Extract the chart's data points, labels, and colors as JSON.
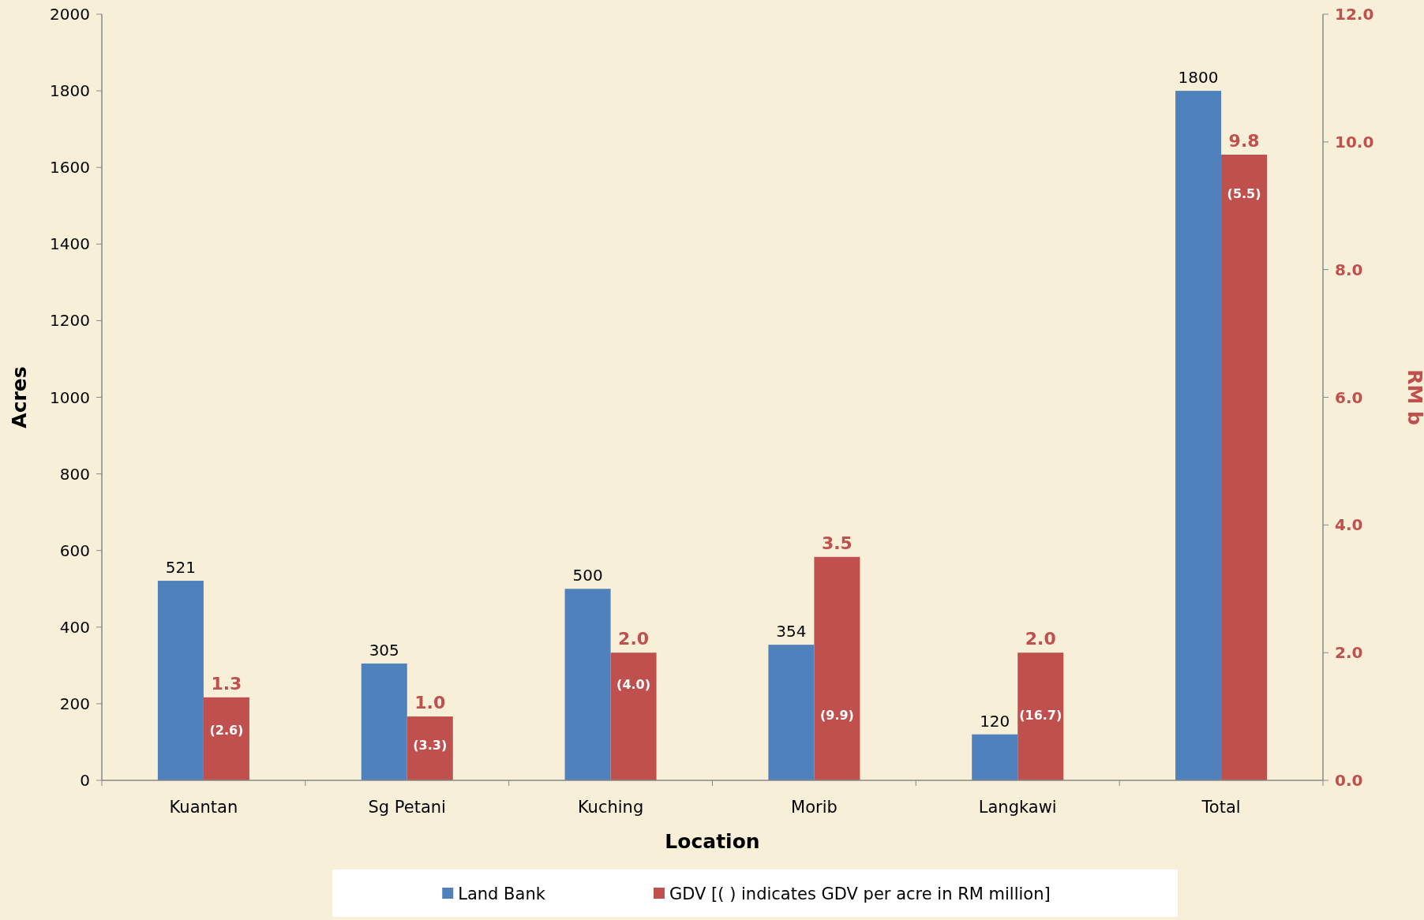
{
  "chart_data": {
    "type": "bar",
    "xlabel": "Location",
    "ylabel": "Acres",
    "y2label": "RM b",
    "categories": [
      "Kuantan",
      "Sg Petani",
      "Kuching",
      "Morib",
      "Langkawi",
      "Total"
    ],
    "series": [
      {
        "name": "Land Bank",
        "color": "#4f81bd",
        "values": [
          521,
          305,
          500,
          354,
          120,
          1800
        ]
      },
      {
        "name": "GDV [( ) indicates GDV per acre in RM million]",
        "color": "#c0504d",
        "axis": "y2",
        "values": [
          1.3,
          1.0,
          2.0,
          3.5,
          2.0,
          9.8
        ],
        "value_labels": [
          "1.3",
          "1.0",
          "2.0",
          "3.5",
          "2.0",
          "9.8"
        ]
      }
    ],
    "ylim": [
      0,
      2000
    ],
    "yticks": [
      0,
      200,
      400,
      600,
      800,
      1000,
      1200,
      1400,
      1600,
      1800,
      2000
    ],
    "y2lim": [
      0,
      12
    ],
    "y2ticks": [
      {
        "value": 0,
        "label": "0.0"
      },
      {
        "value": 2,
        "label": "2.0"
      },
      {
        "value": 4,
        "label": "4.0"
      },
      {
        "value": 6,
        "label": "6.0"
      },
      {
        "value": 8,
        "label": "8.0"
      },
      {
        "value": 10,
        "label": "10.0"
      },
      {
        "value": 12,
        "label": "12.0"
      }
    ],
    "data_labels": true,
    "grid": false,
    "legend": "bottom",
    "annotations": [
      {
        "text": "(2.6)",
        "x": "Kuantan",
        "y": 133
      },
      {
        "text": "(3.3)",
        "x": "Sg Petani",
        "y": 95
      },
      {
        "text": "(4.0)",
        "x": "Kuching",
        "y": 254
      },
      {
        "text": "(9.9)",
        "x": "Morib",
        "y": 173
      },
      {
        "text": "(16.7)",
        "x": "Langkawi",
        "y": 173
      },
      {
        "text": "(5.5)",
        "x": "Total",
        "y": 1535
      }
    ]
  }
}
